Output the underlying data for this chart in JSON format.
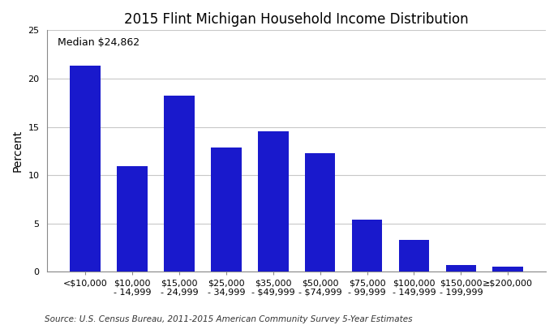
{
  "title": "2015 Flint Michigan Household Income Distribution",
  "ylabel": "Percent",
  "categories": [
    "<$10,000",
    "$10,000\n- 14,999",
    "$15,000\n- 24,999",
    "$25,000\n- 34,999",
    "$35,000\n- $49,999",
    "$50,000\n- $74,999",
    "$75,000\n- 99,999",
    "$100,000\n- 149,999",
    "$150,000\n- 199,999",
    "≥$200,000"
  ],
  "values": [
    21.3,
    10.9,
    18.2,
    12.9,
    14.5,
    12.3,
    5.4,
    3.3,
    0.7,
    0.5
  ],
  "bar_color": "#1919CC",
  "ylim": [
    0,
    25
  ],
  "yticks": [
    0,
    5,
    10,
    15,
    20,
    25
  ],
  "median_label": "Median $24,862",
  "source_text": "Source: U.S. Census Bureau, 2011-2015 American Community Survey 5-Year Estimates",
  "background_color": "#FFFFFF",
  "grid_color": "#C8C8C8",
  "title_fontsize": 12,
  "axis_label_fontsize": 10,
  "tick_fontsize": 8,
  "source_fontsize": 7.5
}
